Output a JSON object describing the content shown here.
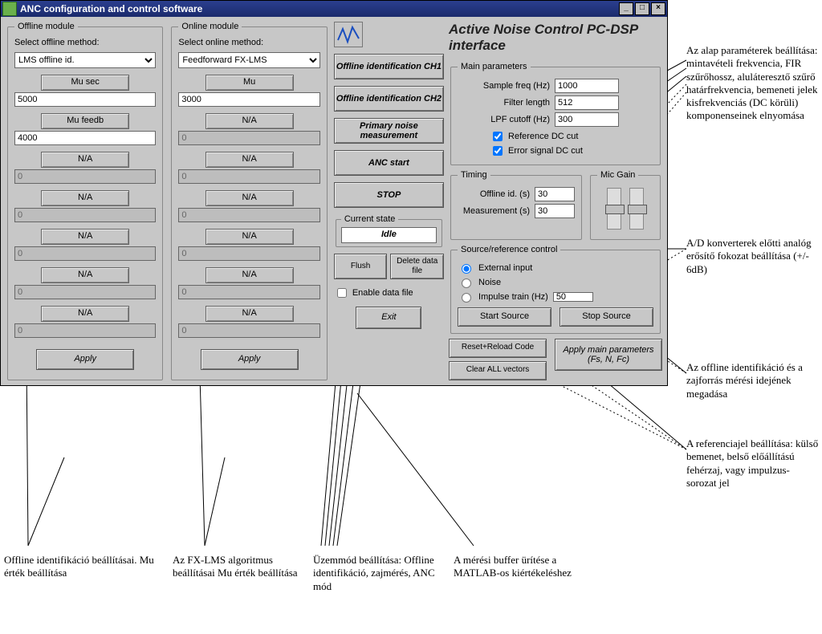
{
  "window": {
    "title": "ANC configuration and control software",
    "minimize": "_",
    "maximize": "□",
    "close": "×"
  },
  "offline_module": {
    "legend": "Offline module",
    "select_label": "Select offline method:",
    "selected": "LMS offline id.",
    "fields": [
      {
        "btn": "Mu sec",
        "value": "5000",
        "enabled": true
      },
      {
        "btn": "Mu feedb",
        "value": "4000",
        "enabled": true
      },
      {
        "btn": "N/A",
        "value": "0",
        "enabled": false
      },
      {
        "btn": "N/A",
        "value": "0",
        "enabled": false
      },
      {
        "btn": "N/A",
        "value": "0",
        "enabled": false
      },
      {
        "btn": "N/A",
        "value": "0",
        "enabled": false
      },
      {
        "btn": "N/A",
        "value": "0",
        "enabled": false
      }
    ],
    "apply": "Apply"
  },
  "online_module": {
    "legend": "Online module",
    "select_label": "Select online method:",
    "selected": "Feedforward FX-LMS",
    "fields": [
      {
        "btn": "Mu",
        "value": "3000",
        "enabled": true
      },
      {
        "btn": "N/A",
        "value": "0",
        "enabled": false
      },
      {
        "btn": "N/A",
        "value": "0",
        "enabled": false
      },
      {
        "btn": "N/A",
        "value": "0",
        "enabled": false
      },
      {
        "btn": "N/A",
        "value": "0",
        "enabled": false
      },
      {
        "btn": "N/A",
        "value": "0",
        "enabled": false
      },
      {
        "btn": "N/A",
        "value": "0",
        "enabled": false
      }
    ],
    "apply": "Apply"
  },
  "center": {
    "btn_offline_id_ch1": "Offline identification CH1",
    "btn_offline_id_ch2": "Offline identification CH2",
    "btn_primary_noise": "Primary noise measurement",
    "btn_anc_start": "ANC start",
    "btn_stop": "STOP",
    "current_state_legend": "Current state",
    "current_state": "Idle",
    "btn_flush": "Flush",
    "btn_delete_datafile": "Delete data file",
    "chk_enable_datafile": "Enable data file",
    "btn_exit": "Exit"
  },
  "header": {
    "app_title": "Active Noise Control PC-DSP interface"
  },
  "main_params": {
    "legend": "Main parameters",
    "sample_freq_label": "Sample freq (Hz)",
    "sample_freq": "1000",
    "filter_length_label": "Filter length",
    "filter_length": "512",
    "lpf_cutoff_label": "LPF cutoff (Hz)",
    "lpf_cutoff": "300",
    "ref_dc_cut": "Reference DC cut",
    "err_dc_cut": "Error signal DC cut"
  },
  "timing": {
    "legend": "Timing",
    "offline_id_label": "Offline id. (s)",
    "offline_id": "30",
    "measurement_label": "Measurement (s)",
    "measurement": "30"
  },
  "mic_gain": {
    "legend": "Mic Gain"
  },
  "source_ref": {
    "legend": "Source/reference control",
    "external_input": "External input",
    "noise": "Noise",
    "impulse_train": "Impulse train (Hz)",
    "impulse_value": "50",
    "start_source": "Start Source",
    "stop_source": "Stop Source"
  },
  "bottom": {
    "reset_reload": "Reset+Reload Code",
    "clear_vectors": "Clear ALL vectors",
    "apply_main": "Apply main parameters (Fs, N, Fc)"
  },
  "annotations": {
    "a_main_params": "Az alap paraméterek beállítása: mintavételi frekvencia, FIR szűrőhossz, aluláteresztő szűrő határfrekvencia, bemeneti jelek kisfrekvenciás (DC körüli) komponenseinek elnyomása",
    "a_mic_gain": "A/D konverterek előtti analóg erősítő fokozat beállítása (+/- 6dB)",
    "a_timing": "Az offline identifikáció és a zajforrás mérési idejének megadása",
    "a_source": "A referenciajel beállítása: külső bemenet, belső előállítású fehérzaj, vagy impulzus-sorozat jel",
    "a_offline": "Offline identifikáció beállításai. Mu érték beállítása",
    "a_online": "Az FX-LMS algoritmus beállításai Mu érték beállítása",
    "a_center": "Üzemmód beállítása: Offline identifikáció, zajmérés, ANC mód",
    "a_flush": "A mérési buffer ürítése a MATLAB-os kiértékeléshez"
  },
  "colors": {
    "panel_bg": "#c7c7c7",
    "titlebar_from": "#2b3f8f",
    "titlebar_to": "#1a2a6c",
    "input_bg": "#ffffff",
    "disabled_bg": "#bdbdbd",
    "border": "#666666"
  }
}
